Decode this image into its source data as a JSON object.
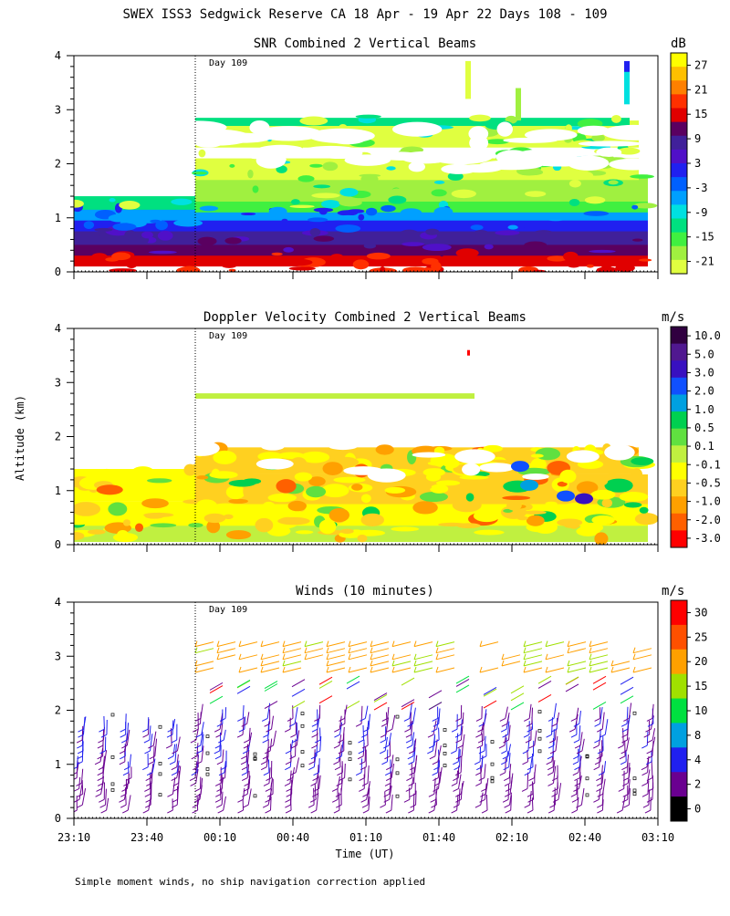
{
  "title": "SWEX ISS3 Sedgwick Reserve CA  18 Apr - 19 Apr 22 Days 108 - 109",
  "footnote": "Simple moment winds, no ship navigation correction applied",
  "y_axis_label": "Altitude (km)",
  "x_axis_label": "Time (UT)",
  "day_marker": "Day 109",
  "chart_data": [
    {
      "type": "heatmap",
      "title": "SNR Combined 2 Vertical Beams",
      "units": "dB",
      "colorbar_labels": [
        "27",
        "21",
        "15",
        "9",
        "3",
        "-3",
        "-9",
        "-15",
        "-21"
      ],
      "colorbar_colors": [
        "#ffff00",
        "#ffc000",
        "#ff8000",
        "#ff3000",
        "#e00000",
        "#5a0060",
        "#40209a",
        "#5010c8",
        "#2020f0",
        "#0060ff",
        "#00a0ff",
        "#00e0e0",
        "#00e080",
        "#40f040",
        "#a0f040",
        "#e0ff40"
      ],
      "ylim": [
        0,
        4
      ],
      "yticks": [
        0,
        1,
        2,
        3,
        4
      ]
    },
    {
      "type": "heatmap",
      "title": "Doppler Velocity Combined 2 Vertical Beams",
      "units": "m/s",
      "colorbar_labels": [
        "10.0",
        "5.0",
        "3.0",
        "2.0",
        "1.0",
        "0.5",
        "0.1",
        "-0.1",
        "-0.5",
        "-1.0",
        "-2.0",
        "-3.0"
      ],
      "colorbar_colors": [
        "#300040",
        "#501890",
        "#3810c0",
        "#1050ff",
        "#00a0e0",
        "#00d050",
        "#60e040",
        "#c0f040",
        "#ffff00",
        "#ffd020",
        "#ffa000",
        "#ff6000",
        "#ff0000"
      ],
      "ylim": [
        0,
        4
      ],
      "yticks": [
        0,
        1,
        2,
        3,
        4
      ]
    },
    {
      "type": "barbs",
      "title": "Winds (10 minutes)",
      "units": "m/s",
      "colorbar_labels": [
        "30",
        "25",
        "20",
        "15",
        "10",
        "8",
        "4",
        "2",
        "0"
      ],
      "colorbar_colors": [
        "#ff0000",
        "#ff5000",
        "#ffa000",
        "#a0e000",
        "#00e040",
        "#00a0e0",
        "#2020f0",
        "#6a0090",
        "#000000"
      ],
      "ylim": [
        0,
        4
      ],
      "yticks": [
        0,
        1,
        2,
        3,
        4
      ],
      "x_tick_labels": [
        "23:10",
        "23:40",
        "00:10",
        "00:40",
        "01:10",
        "01:40",
        "02:10",
        "02:40",
        "03:10"
      ]
    }
  ]
}
